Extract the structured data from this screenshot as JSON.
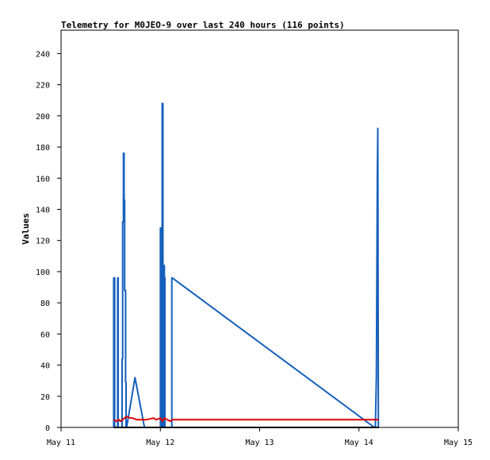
{
  "chart_data": {
    "type": "line",
    "title": "Telemetry for M0JEO-9 over last 240 hours (116 points)",
    "xlabel": "",
    "ylabel": "Values",
    "x_ticks": [
      "May 11",
      "May 12",
      "May 13",
      "May 14",
      "May 15"
    ],
    "x_range_days": [
      11,
      15
    ],
    "y_ticks": [
      0,
      20,
      40,
      60,
      80,
      100,
      120,
      140,
      160,
      180,
      200,
      220,
      240
    ],
    "ylim": [
      0,
      255
    ],
    "grid": false,
    "legend": "none",
    "series": [
      {
        "color": "#1560bd",
        "points": [
          [
            11.53,
            0
          ],
          [
            11.53,
            96
          ],
          [
            11.54,
            96
          ],
          [
            11.54,
            0
          ],
          [
            11.57,
            0
          ],
          [
            11.57,
            96
          ],
          [
            11.575,
            96
          ],
          [
            11.575,
            0
          ],
          [
            11.615,
            0
          ],
          [
            11.615,
            44
          ],
          [
            11.62,
            44
          ],
          [
            11.62,
            132
          ],
          [
            11.628,
            132
          ],
          [
            11.628,
            176
          ],
          [
            11.635,
            176
          ],
          [
            11.635,
            146
          ],
          [
            11.64,
            146
          ],
          [
            11.64,
            88
          ],
          [
            11.65,
            88
          ],
          [
            11.65,
            29
          ],
          [
            11.655,
            29
          ],
          [
            11.655,
            0
          ],
          [
            11.66,
            0
          ],
          [
            11.745,
            32
          ],
          [
            11.84,
            0
          ],
          [
            11.86,
            0
          ],
          [
            12.0,
            0
          ],
          [
            12.0,
            128
          ],
          [
            12.012,
            128
          ],
          [
            12.012,
            0
          ],
          [
            12.018,
            0
          ],
          [
            12.018,
            208
          ],
          [
            12.026,
            208
          ],
          [
            12.026,
            0
          ],
          [
            12.032,
            0
          ],
          [
            12.032,
            104
          ],
          [
            12.04,
            104
          ],
          [
            12.04,
            96
          ],
          [
            12.046,
            96
          ],
          [
            12.046,
            0
          ],
          [
            12.06,
            0
          ],
          [
            12.115,
            0
          ],
          [
            12.115,
            96
          ],
          [
            12.12,
            96
          ],
          [
            14.155,
            0
          ],
          [
            14.165,
            0
          ],
          [
            14.175,
            32
          ],
          [
            14.18,
            96
          ],
          [
            14.185,
            160
          ],
          [
            14.19,
            192
          ],
          [
            14.195,
            0
          ]
        ]
      },
      {
        "color": "#e00000",
        "points": [
          [
            11.53,
            5
          ],
          [
            11.56,
            4
          ],
          [
            11.58,
            5
          ],
          [
            11.6,
            4
          ],
          [
            11.62,
            5
          ],
          [
            11.64,
            6
          ],
          [
            11.66,
            7
          ],
          [
            11.68,
            6.5
          ],
          [
            11.7,
            6
          ],
          [
            11.72,
            6
          ],
          [
            11.74,
            5.5
          ],
          [
            11.76,
            5
          ],
          [
            11.78,
            5
          ],
          [
            11.8,
            5
          ],
          [
            11.82,
            5
          ],
          [
            11.86,
            5
          ],
          [
            11.9,
            5.5
          ],
          [
            11.93,
            6
          ],
          [
            11.96,
            5
          ],
          [
            12.0,
            6
          ],
          [
            12.02,
            4
          ],
          [
            12.04,
            6
          ],
          [
            12.07,
            5
          ],
          [
            12.1,
            4
          ],
          [
            12.12,
            5
          ],
          [
            12.3,
            5
          ],
          [
            12.6,
            5
          ],
          [
            13.0,
            5
          ],
          [
            13.5,
            5
          ],
          [
            14.0,
            5
          ],
          [
            14.2,
            5
          ]
        ]
      },
      {
        "color": "#000000",
        "points": [
          [
            11.53,
            0
          ],
          [
            14.2,
            0
          ]
        ]
      }
    ]
  }
}
